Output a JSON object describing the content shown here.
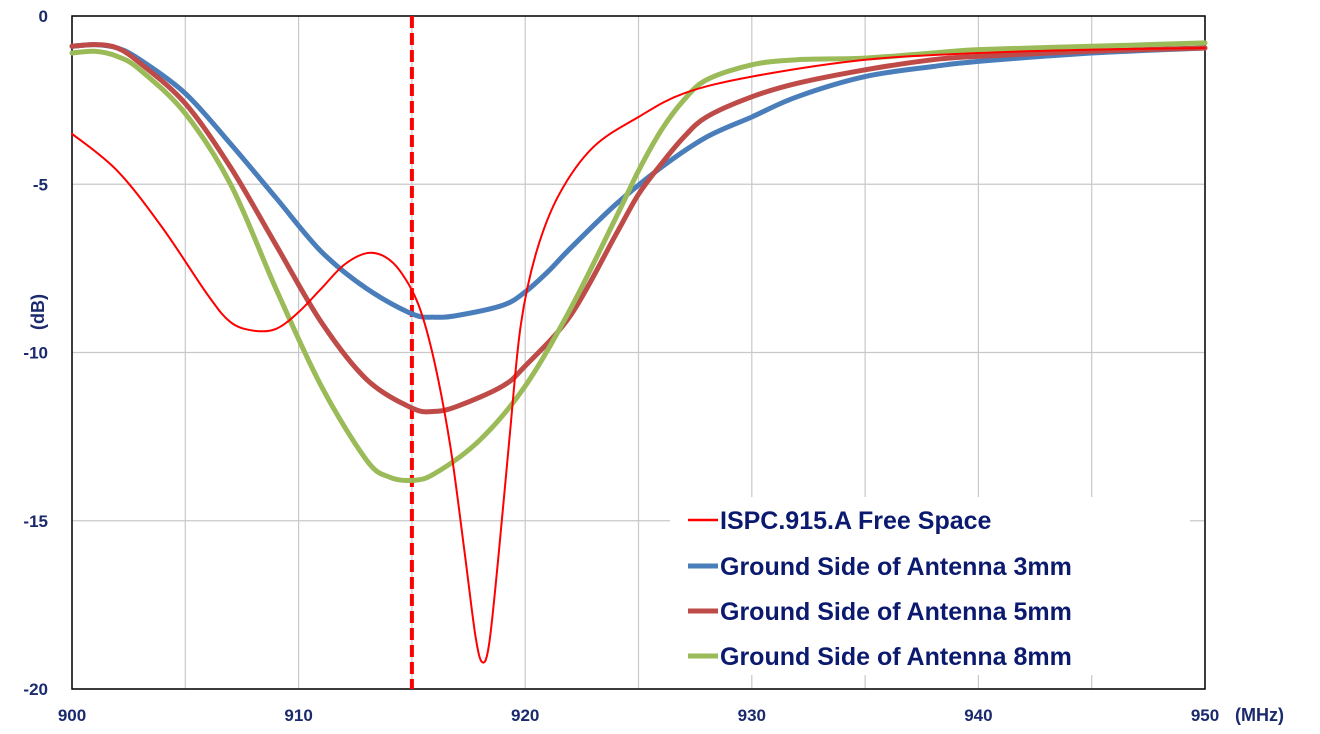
{
  "chart_data": {
    "type": "line",
    "title": "",
    "xlabel": "(MHz)",
    "ylabel": "(dB)",
    "xlim": [
      900,
      950
    ],
    "ylim": [
      -20,
      0
    ],
    "xticks": [
      900,
      910,
      920,
      930,
      940,
      950
    ],
    "yticks": [
      0,
      -5,
      -10,
      -15,
      -20
    ],
    "grid": true,
    "legend_position": "bottom-right",
    "marker_line": {
      "x": 915,
      "color": "#ff0000",
      "style": "dashed"
    },
    "series": [
      {
        "name": "ISPC.915.A Free Space",
        "color": "#ff0000",
        "width": 2,
        "points": [
          [
            900,
            -3.5
          ],
          [
            902,
            -4.6
          ],
          [
            904,
            -6.3
          ],
          [
            906,
            -8.3
          ],
          [
            907,
            -9.1
          ],
          [
            908,
            -9.35
          ],
          [
            909,
            -9.3
          ],
          [
            910,
            -8.8
          ],
          [
            911,
            -8.1
          ],
          [
            912,
            -7.4
          ],
          [
            913,
            -7.05
          ],
          [
            913.8,
            -7.15
          ],
          [
            914.5,
            -7.6
          ],
          [
            915.3,
            -8.6
          ],
          [
            916,
            -10.3
          ],
          [
            916.7,
            -12.8
          ],
          [
            917.3,
            -15.8
          ],
          [
            917.8,
            -18.4
          ],
          [
            918.1,
            -19.2
          ],
          [
            918.4,
            -18.7
          ],
          [
            918.8,
            -16.2
          ],
          [
            919.3,
            -12.6
          ],
          [
            919.8,
            -9.2
          ],
          [
            920.5,
            -7.0
          ],
          [
            921.5,
            -5.3
          ],
          [
            923,
            -3.9
          ],
          [
            925,
            -3.0
          ],
          [
            927,
            -2.3
          ],
          [
            930,
            -1.8
          ],
          [
            935,
            -1.3
          ],
          [
            940,
            -1.1
          ],
          [
            945,
            -1.0
          ],
          [
            950,
            -0.95
          ]
        ]
      },
      {
        "name": "Ground Side of Antenna 3mm",
        "color": "#4a7ebb",
        "width": 5,
        "points": [
          [
            900,
            -0.9
          ],
          [
            901,
            -0.85
          ],
          [
            902,
            -0.95
          ],
          [
            903,
            -1.3
          ],
          [
            905,
            -2.3
          ],
          [
            907,
            -3.8
          ],
          [
            909,
            -5.4
          ],
          [
            911,
            -7.0
          ],
          [
            913,
            -8.1
          ],
          [
            915,
            -8.85
          ],
          [
            916,
            -8.95
          ],
          [
            917,
            -8.9
          ],
          [
            919,
            -8.6
          ],
          [
            920,
            -8.2
          ],
          [
            921,
            -7.6
          ],
          [
            922,
            -6.9
          ],
          [
            924,
            -5.6
          ],
          [
            926,
            -4.5
          ],
          [
            928,
            -3.6
          ],
          [
            930,
            -3.0
          ],
          [
            932,
            -2.4
          ],
          [
            935,
            -1.8
          ],
          [
            938,
            -1.5
          ],
          [
            940,
            -1.35
          ],
          [
            945,
            -1.1
          ],
          [
            950,
            -0.95
          ]
        ]
      },
      {
        "name": "Ground Side of Antenna 5mm",
        "color": "#be4b48",
        "width": 5,
        "points": [
          [
            900,
            -0.9
          ],
          [
            901,
            -0.85
          ],
          [
            902,
            -0.95
          ],
          [
            903,
            -1.4
          ],
          [
            905,
            -2.6
          ],
          [
            907,
            -4.5
          ],
          [
            909,
            -6.8
          ],
          [
            911,
            -9.1
          ],
          [
            913,
            -10.8
          ],
          [
            915,
            -11.65
          ],
          [
            916,
            -11.75
          ],
          [
            917,
            -11.6
          ],
          [
            919,
            -11.0
          ],
          [
            920,
            -10.4
          ],
          [
            922,
            -8.9
          ],
          [
            924,
            -6.5
          ],
          [
            925,
            -5.3
          ],
          [
            926,
            -4.4
          ],
          [
            927,
            -3.6
          ],
          [
            928,
            -3.0
          ],
          [
            930,
            -2.4
          ],
          [
            932,
            -2.0
          ],
          [
            935,
            -1.6
          ],
          [
            938,
            -1.3
          ],
          [
            940,
            -1.2
          ],
          [
            945,
            -1.05
          ],
          [
            950,
            -0.95
          ]
        ]
      },
      {
        "name": "Ground Side of Antenna 8mm",
        "color": "#9bbb59",
        "width": 5,
        "points": [
          [
            900,
            -1.1
          ],
          [
            901,
            -1.05
          ],
          [
            902,
            -1.2
          ],
          [
            903,
            -1.6
          ],
          [
            905,
            -2.9
          ],
          [
            907,
            -5.0
          ],
          [
            909,
            -8.1
          ],
          [
            911,
            -11.0
          ],
          [
            913,
            -13.2
          ],
          [
            914,
            -13.7
          ],
          [
            915,
            -13.8
          ],
          [
            916,
            -13.6
          ],
          [
            918,
            -12.6
          ],
          [
            920,
            -11.0
          ],
          [
            922,
            -8.7
          ],
          [
            924,
            -6.0
          ],
          [
            925,
            -4.6
          ],
          [
            926,
            -3.4
          ],
          [
            927,
            -2.5
          ],
          [
            928,
            -1.9
          ],
          [
            930,
            -1.45
          ],
          [
            932,
            -1.3
          ],
          [
            935,
            -1.25
          ],
          [
            938,
            -1.1
          ],
          [
            940,
            -1.0
          ],
          [
            945,
            -0.9
          ],
          [
            950,
            -0.8
          ]
        ]
      }
    ]
  }
}
